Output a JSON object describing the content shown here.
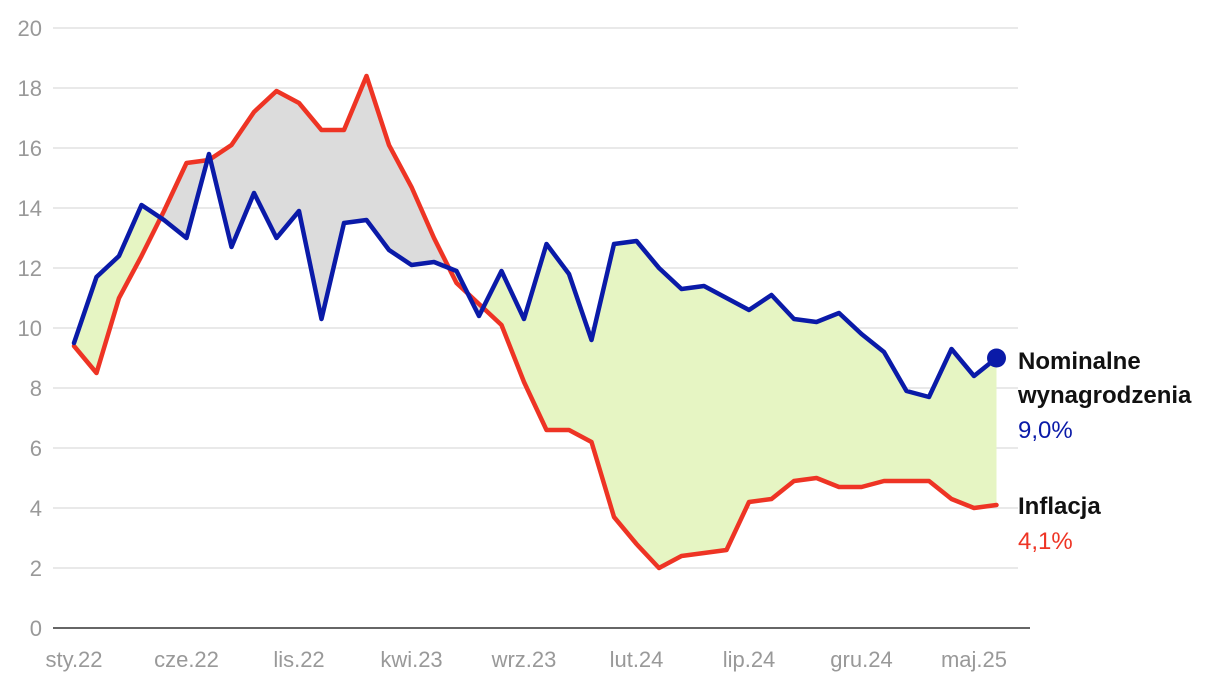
{
  "chart_data": {
    "type": "line",
    "title": "",
    "xlabel": "",
    "ylabel": "",
    "ylim": [
      0,
      20
    ],
    "yticks": [
      0,
      2,
      4,
      6,
      8,
      10,
      12,
      14,
      16,
      18,
      20
    ],
    "grid": true,
    "x_tick_labels": [
      "sty.22",
      "cze.22",
      "lis.22",
      "kwi.23",
      "wrz.23",
      "lut.24",
      "lip.24",
      "gru.24",
      "maj.25"
    ],
    "x_tick_every": 5,
    "series": [
      {
        "name": "Nominalne wynagrodzenia",
        "name_lines": [
          "Nominalne",
          "wynagrodzenia"
        ],
        "value_label": "9,0%",
        "color": "#0a1aa8",
        "values": [
          9.5,
          11.7,
          12.4,
          14.1,
          13.6,
          13.0,
          15.8,
          12.7,
          14.5,
          13.0,
          13.9,
          10.3,
          13.5,
          13.6,
          12.6,
          12.1,
          12.2,
          11.9,
          10.4,
          11.9,
          10.3,
          12.8,
          11.8,
          9.6,
          12.8,
          12.9,
          12.0,
          11.3,
          11.4,
          11.0,
          10.6,
          11.1,
          10.3,
          10.2,
          10.5,
          9.8,
          9.2,
          7.9,
          7.7,
          9.3,
          8.4,
          9.0
        ]
      },
      {
        "name": "Inflacja",
        "name_lines": [
          "Inflacja"
        ],
        "value_label": "4,1%",
        "color": "#ee3424",
        "values": [
          9.4,
          8.5,
          11.0,
          12.4,
          13.9,
          15.5,
          15.6,
          16.1,
          17.2,
          17.9,
          17.5,
          16.6,
          16.6,
          18.4,
          16.1,
          14.7,
          13.0,
          11.5,
          10.8,
          10.1,
          8.2,
          6.6,
          6.6,
          6.2,
          3.7,
          2.8,
          2.0,
          2.4,
          2.5,
          2.6,
          4.2,
          4.3,
          4.9,
          5.0,
          4.7,
          4.7,
          4.9,
          4.9,
          4.9,
          4.3,
          4.0,
          4.1
        ]
      }
    ],
    "fill_colors": {
      "wages_above": "#e6f5c3",
      "inflation_above": "#dcdcdc"
    },
    "axis_colors": {
      "grid": "#dcdcdc",
      "axis": "#333333",
      "tick_label": "#999999"
    }
  }
}
